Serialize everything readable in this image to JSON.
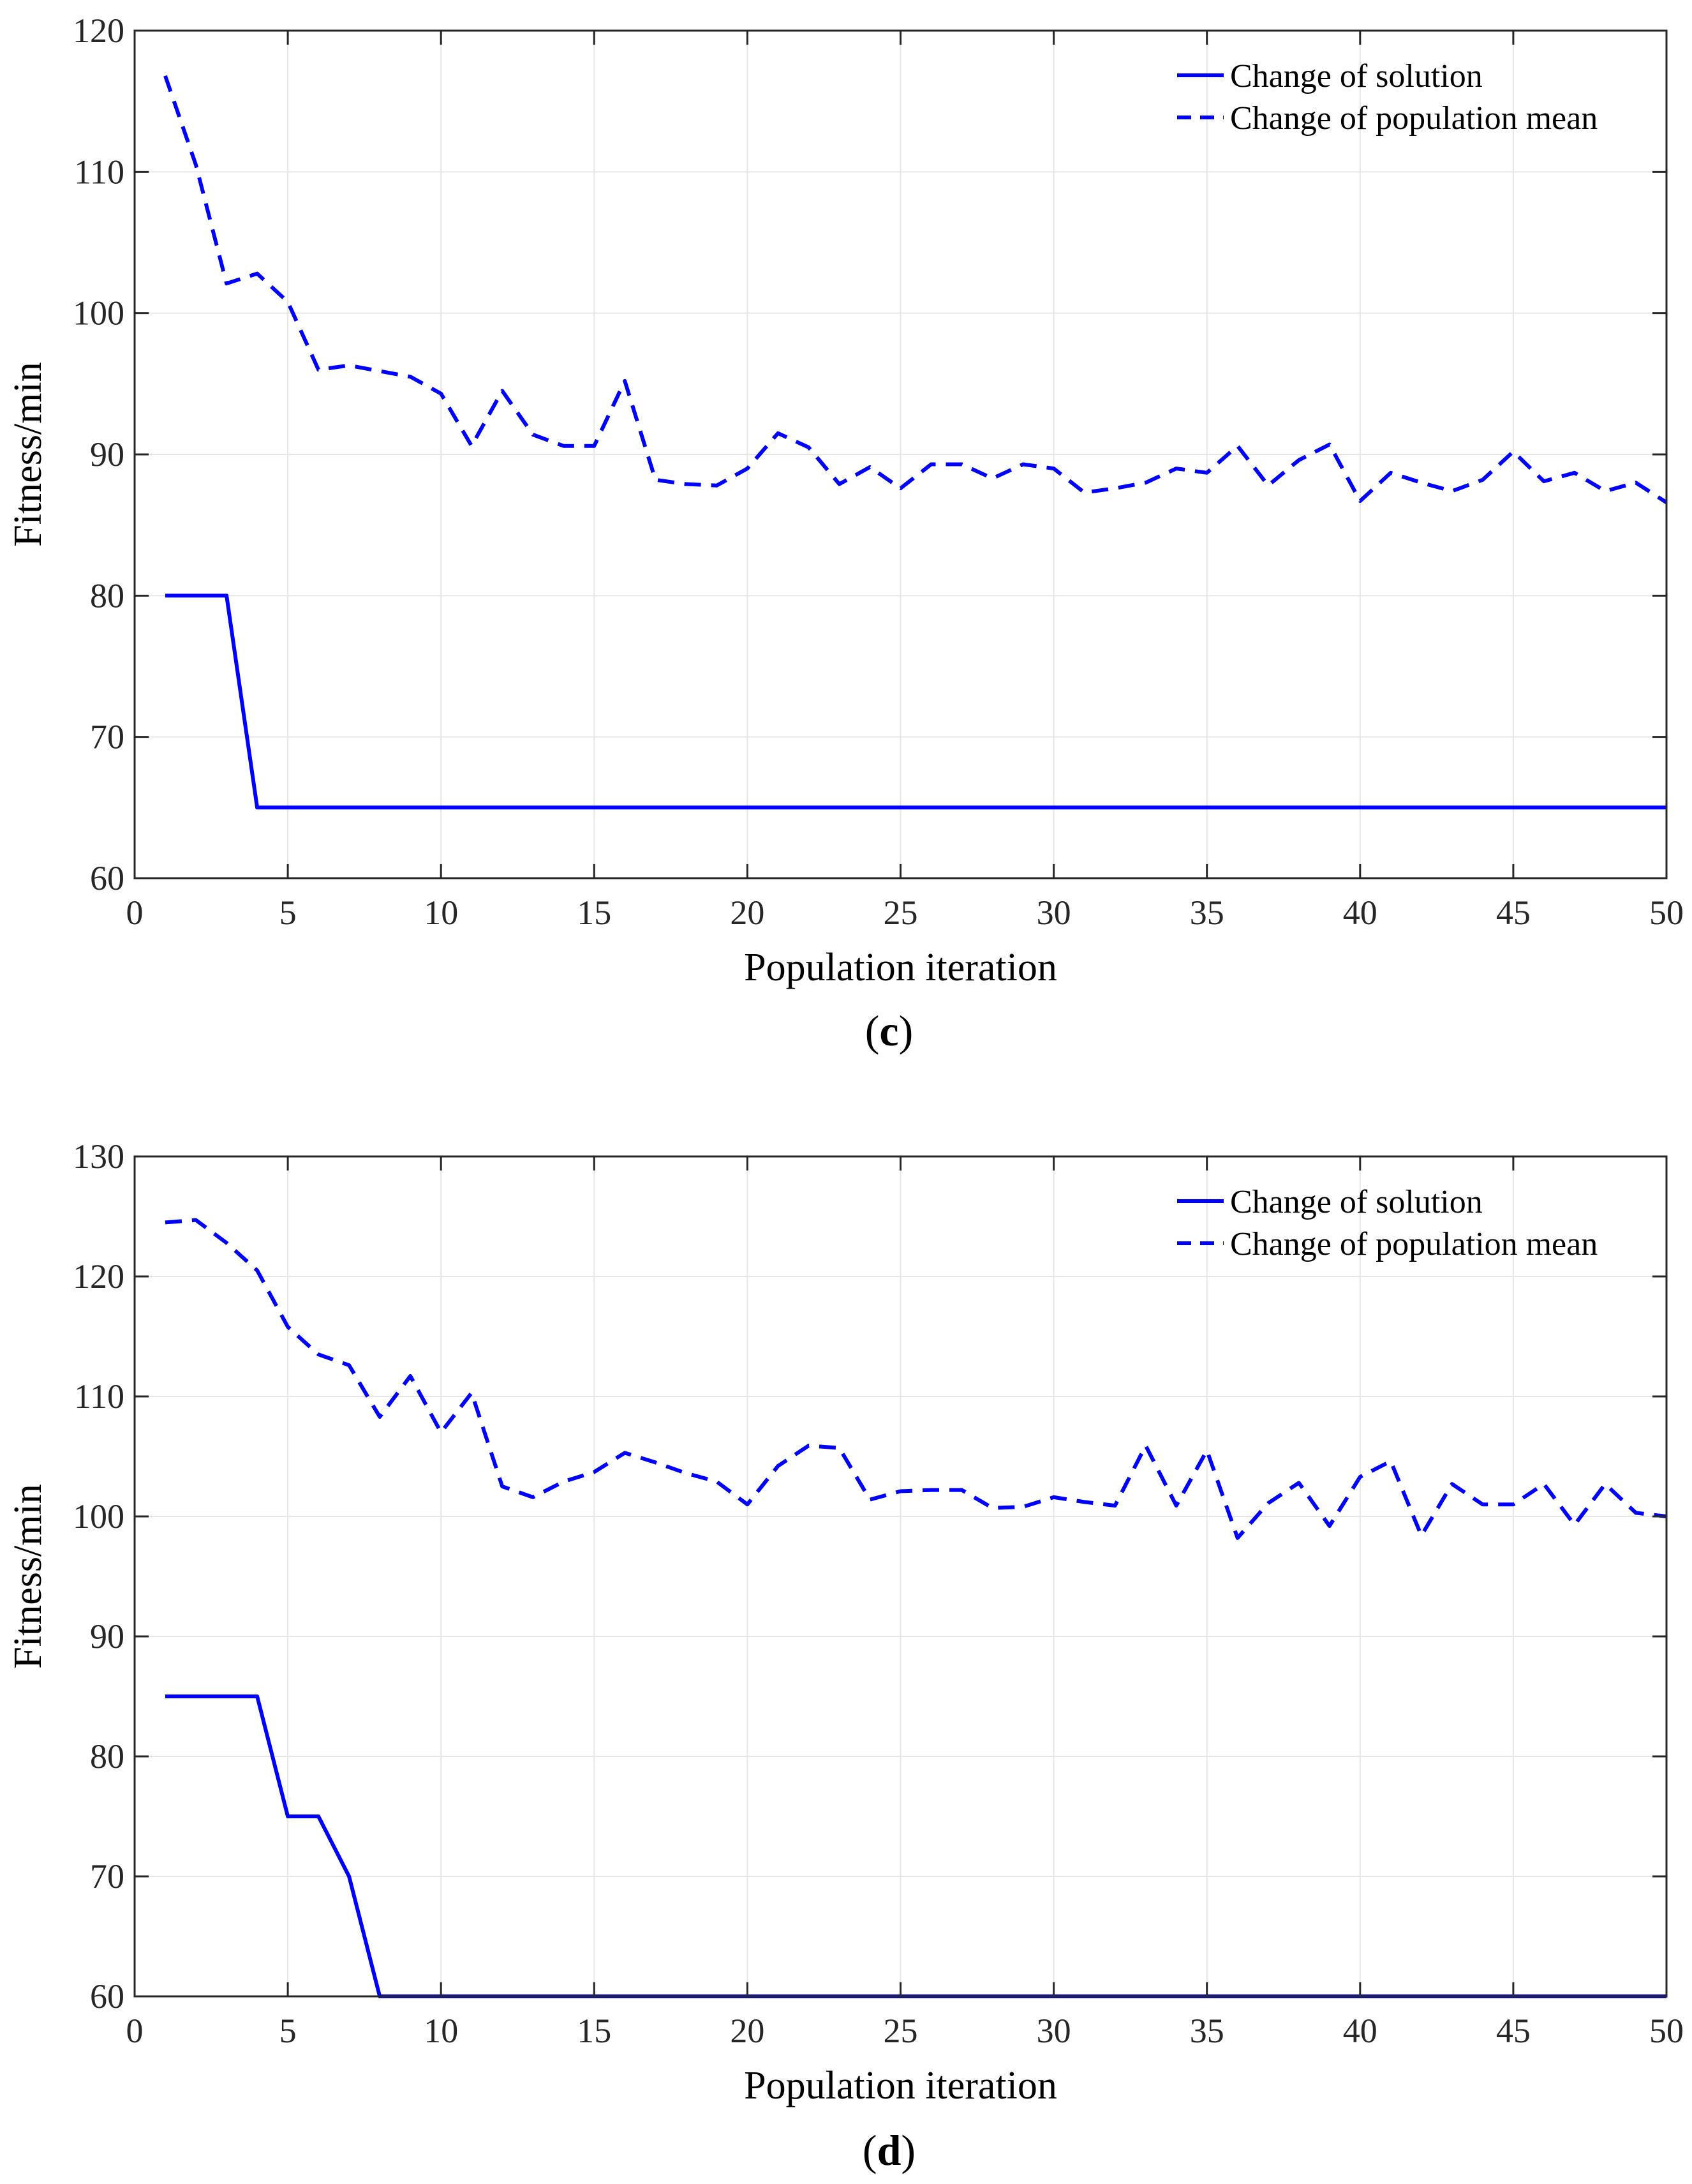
{
  "chart_data": [
    {
      "type": "line",
      "panel": "c",
      "caption_open": "(",
      "caption_letter": "c",
      "caption_close": ")",
      "xlabel": "Population iteration",
      "ylabel": "Fitness/min",
      "xlim": [
        0,
        50
      ],
      "ylim": [
        60,
        120
      ],
      "xticks": [
        0,
        5,
        10,
        15,
        20,
        25,
        30,
        35,
        40,
        45,
        50
      ],
      "yticks": [
        60,
        70,
        80,
        90,
        100,
        110,
        120
      ],
      "grid": true,
      "legend_position": "top-right",
      "color": "#0000ff",
      "x": [
        1,
        2,
        3,
        4,
        5,
        6,
        7,
        8,
        9,
        10,
        11,
        12,
        13,
        14,
        15,
        16,
        17,
        18,
        19,
        20,
        21,
        22,
        23,
        24,
        25,
        26,
        27,
        28,
        29,
        30,
        31,
        32,
        33,
        34,
        35,
        36,
        37,
        38,
        39,
        40,
        41,
        42,
        43,
        44,
        45,
        46,
        47,
        48,
        49,
        50
      ],
      "series": [
        {
          "name": "Change of solution",
          "style": "solid",
          "values": [
            80,
            80,
            80,
            65,
            65,
            65,
            65,
            65,
            65,
            65,
            65,
            65,
            65,
            65,
            65,
            65,
            65,
            65,
            65,
            65,
            65,
            65,
            65,
            65,
            65,
            65,
            65,
            65,
            65,
            65,
            65,
            65,
            65,
            65,
            65,
            65,
            65,
            65,
            65,
            65,
            65,
            65,
            65,
            65,
            65,
            65,
            65,
            65,
            65,
            65
          ]
        },
        {
          "name": "Change of population mean",
          "style": "dashed",
          "values": [
            116.8,
            110.5,
            102.1,
            102.8,
            100.8,
            96.0,
            96.3,
            95.9,
            95.5,
            94.3,
            90.6,
            94.5,
            91.4,
            90.6,
            90.6,
            95.2,
            88.2,
            87.9,
            87.8,
            89.0,
            91.5,
            90.5,
            87.9,
            89.1,
            87.6,
            89.3,
            89.3,
            88.3,
            89.3,
            89.0,
            87.3,
            87.6,
            88.0,
            89.0,
            88.7,
            90.6,
            87.8,
            89.6,
            90.7,
            86.7,
            88.7,
            88.0,
            87.4,
            88.2,
            90.2,
            88.1,
            88.7,
            87.4,
            88.0,
            86.6
          ]
        }
      ]
    },
    {
      "type": "line",
      "panel": "d",
      "caption_open": "(",
      "caption_letter": "d",
      "caption_close": ")",
      "xlabel": "Population iteration",
      "ylabel": "Fitness/min",
      "xlim": [
        0,
        50
      ],
      "ylim": [
        60,
        130
      ],
      "xticks": [
        0,
        5,
        10,
        15,
        20,
        25,
        30,
        35,
        40,
        45,
        50
      ],
      "yticks": [
        60,
        70,
        80,
        90,
        100,
        110,
        120,
        130
      ],
      "grid": true,
      "legend_position": "top-right",
      "color": "#0000ff",
      "x": [
        1,
        2,
        3,
        4,
        5,
        6,
        7,
        8,
        9,
        10,
        11,
        12,
        13,
        14,
        15,
        16,
        17,
        18,
        19,
        20,
        21,
        22,
        23,
        24,
        25,
        26,
        27,
        28,
        29,
        30,
        31,
        32,
        33,
        34,
        35,
        36,
        37,
        38,
        39,
        40,
        41,
        42,
        43,
        44,
        45,
        46,
        47,
        48,
        49,
        50
      ],
      "series": [
        {
          "name": "Change of solution",
          "style": "solid",
          "values": [
            85,
            85,
            85,
            85,
            75,
            75,
            70,
            60,
            60,
            60,
            60,
            60,
            60,
            60,
            60,
            60,
            60,
            60,
            60,
            60,
            60,
            60,
            60,
            60,
            60,
            60,
            60,
            60,
            60,
            60,
            60,
            60,
            60,
            60,
            60,
            60,
            60,
            60,
            60,
            60,
            60,
            60,
            60,
            60,
            60,
            60,
            60,
            60,
            60,
            60
          ]
        },
        {
          "name": "Change of population mean",
          "style": "dashed",
          "values": [
            124.5,
            124.7,
            122.8,
            120.5,
            115.8,
            113.5,
            112.6,
            108.3,
            111.7,
            107.0,
            110.3,
            102.5,
            101.6,
            102.9,
            103.7,
            105.3,
            104.5,
            103.6,
            102.9,
            101.0,
            104.2,
            105.9,
            105.7,
            101.4,
            102.1,
            102.2,
            102.2,
            100.7,
            100.8,
            101.6,
            101.2,
            100.9,
            105.9,
            100.9,
            105.5,
            98.2,
            101.1,
            102.8,
            99.2,
            103.3,
            104.6,
            98.4,
            102.7,
            101.0,
            101.0,
            102.7,
            99.3,
            102.7,
            100.3,
            100.0
          ]
        }
      ]
    }
  ]
}
